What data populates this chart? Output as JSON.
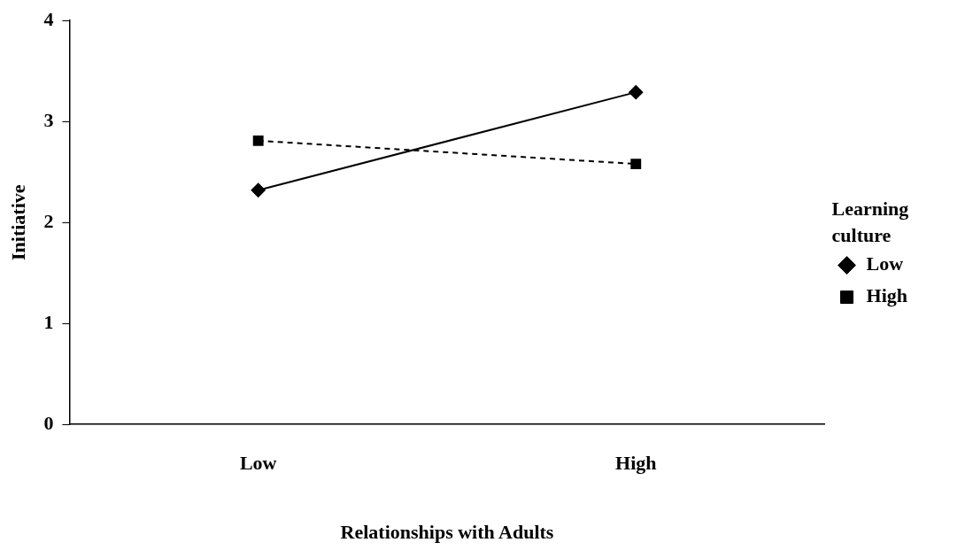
{
  "chart_data": {
    "type": "line",
    "xlabel": "Relationships with Adults",
    "ylabel": "Initiative",
    "legend_title": "Learning culture",
    "categories": [
      "Low",
      "High"
    ],
    "series": [
      {
        "name": "Low",
        "color": "#000000",
        "values": [
          2.32,
          3.29
        ],
        "marker": "diamond",
        "line_style": "solid"
      },
      {
        "name": "High",
        "color": "#000000",
        "values": [
          2.81,
          2.58
        ],
        "marker": "square",
        "line_style": "dashed"
      }
    ],
    "ylim": [
      0,
      4
    ],
    "yticks": [
      0,
      1,
      2,
      3,
      4
    ],
    "grid": false,
    "legend": "right"
  }
}
